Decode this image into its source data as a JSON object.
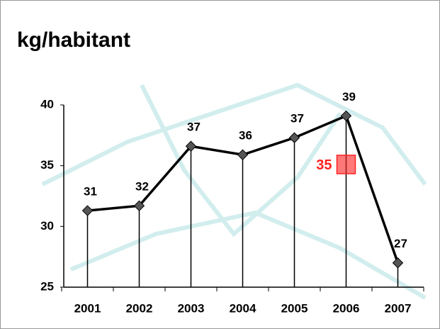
{
  "chart_data": {
    "type": "line",
    "title": "kg/habitant",
    "categories": [
      "2001",
      "2002",
      "2003",
      "2004",
      "2005",
      "2006",
      "2007"
    ],
    "values": [
      31.3,
      31.7,
      36.6,
      35.9,
      37.3,
      39.1,
      27.0
    ],
    "value_labels": [
      "31",
      "32",
      "37",
      "36",
      "37",
      "39",
      "27"
    ],
    "color": "#000000",
    "ylim": [
      25,
      40
    ],
    "yticks": [
      25,
      30,
      35,
      40
    ],
    "annotations": [
      {
        "text": "35",
        "x": "2006",
        "y": 35.1,
        "color": "#ff2020"
      }
    ]
  }
}
